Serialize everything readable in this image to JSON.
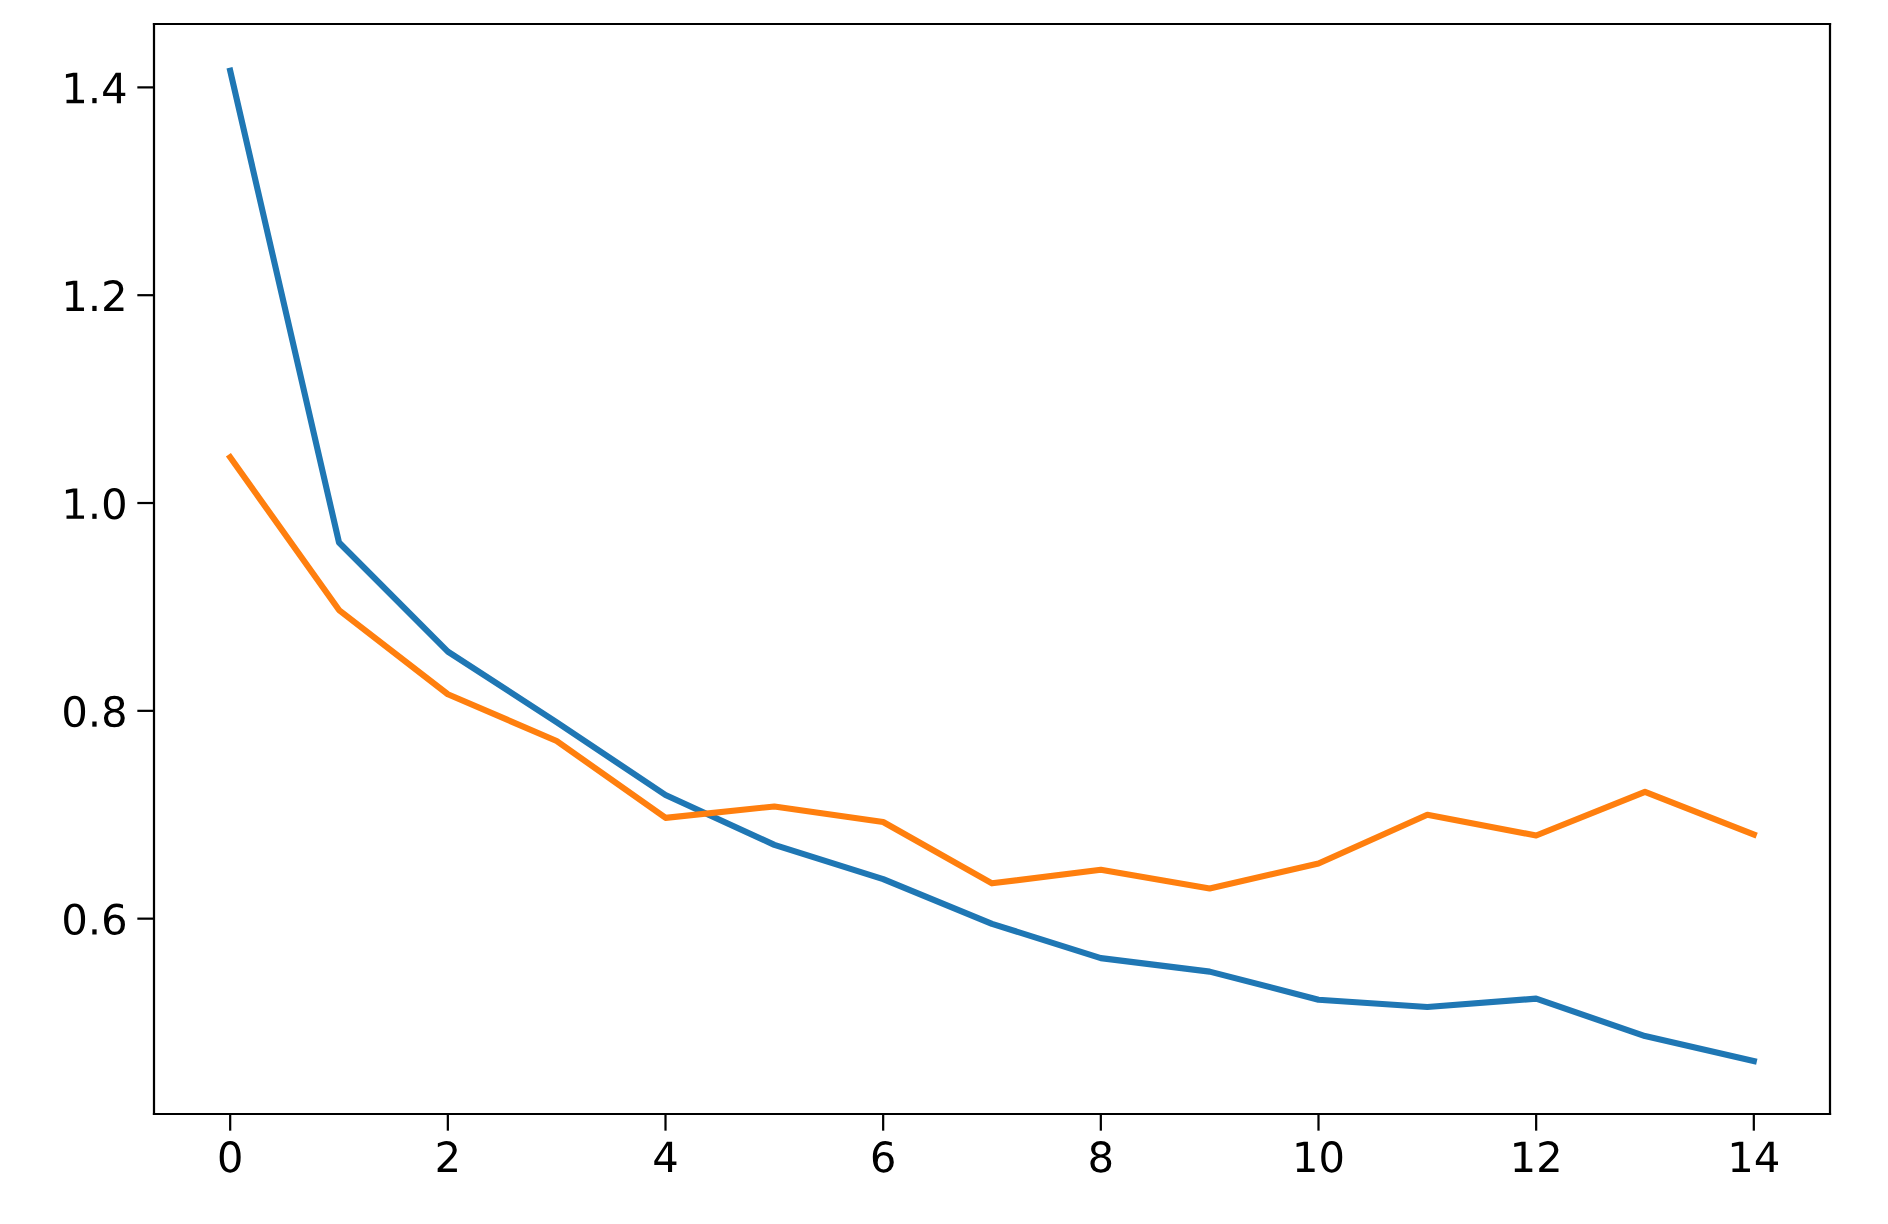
{
  "chart_data": {
    "type": "line",
    "x": [
      0,
      1,
      2,
      3,
      4,
      5,
      6,
      7,
      8,
      9,
      10,
      11,
      12,
      13,
      14
    ],
    "series": [
      {
        "color": "#1f77b4",
        "values": [
          1.416,
          0.962,
          0.857,
          0.789,
          0.719,
          0.671,
          0.638,
          0.595,
          0.562,
          0.549,
          0.522,
          0.515,
          0.523,
          0.487,
          0.463
        ]
      },
      {
        "color": "#ff7f0e",
        "values": [
          1.044,
          0.897,
          0.816,
          0.771,
          0.697,
          0.708,
          0.693,
          0.634,
          0.647,
          0.629,
          0.653,
          0.7,
          0.68,
          0.722,
          0.681
        ]
      }
    ],
    "xlim": [
      -0.7,
      14.7
    ],
    "xticks": [
      0,
      2,
      4,
      6,
      8,
      10,
      12,
      14
    ],
    "ylim": [
      0.412,
      1.461
    ],
    "yticks": [
      0.6,
      0.8,
      {
        "value": 1.0,
        "label": "1.0"
      },
      1.2,
      1.4
    ],
    "grid": false
  }
}
